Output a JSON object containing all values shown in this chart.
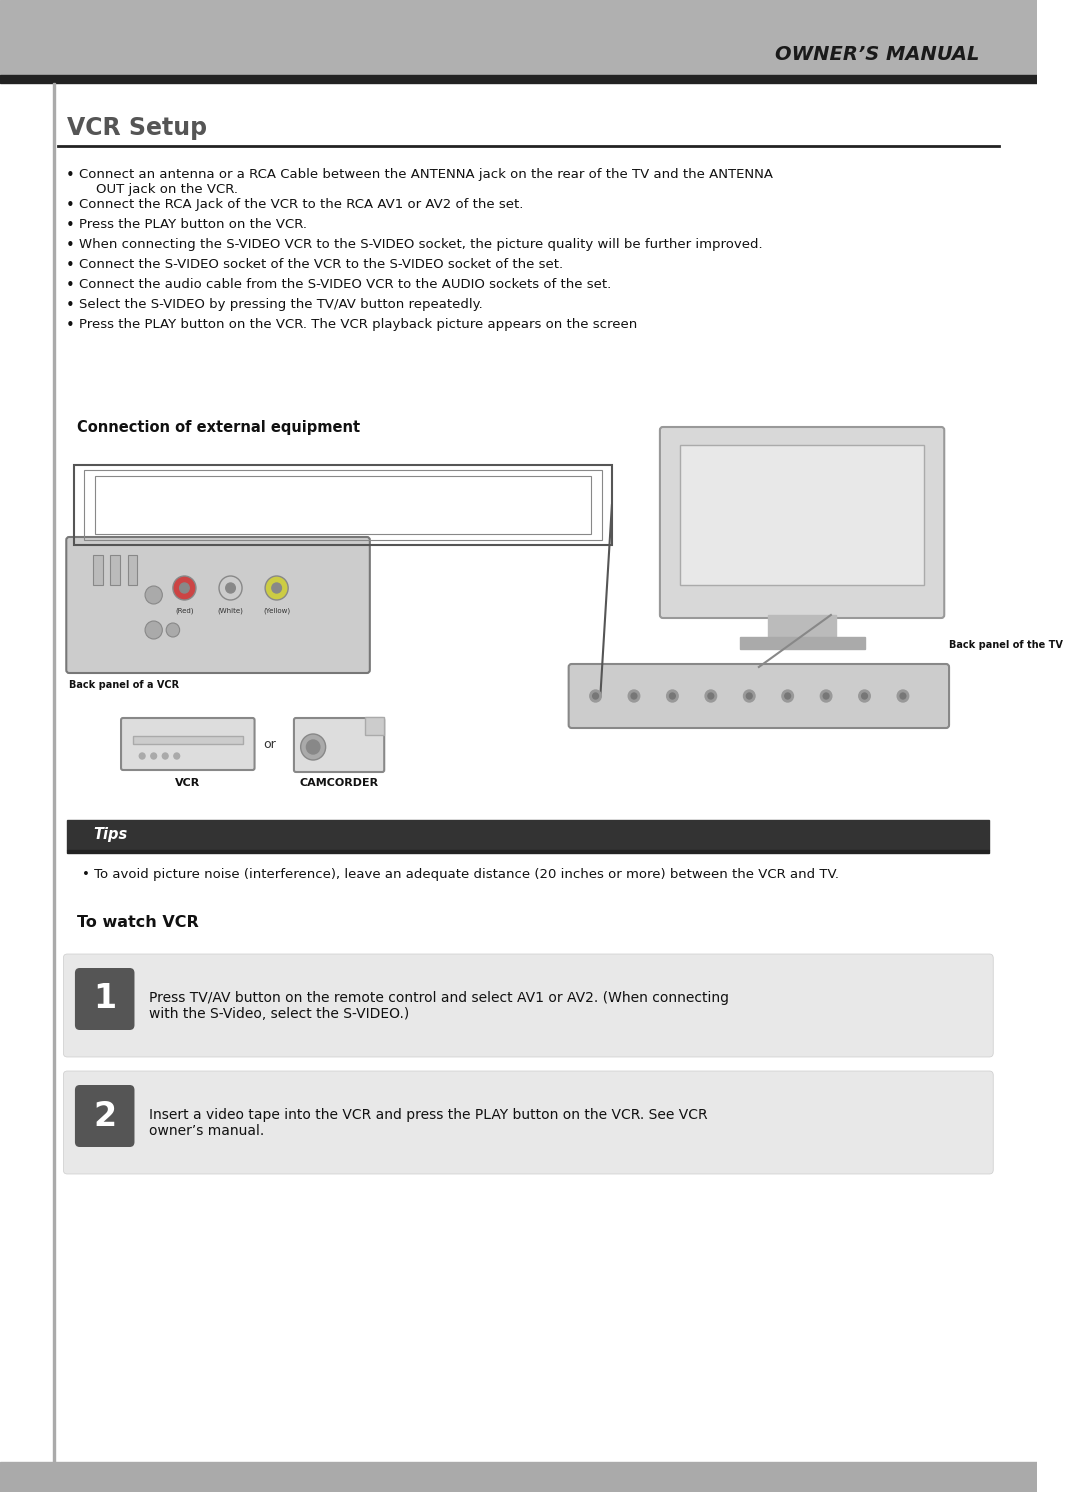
{
  "page_bg": "#ffffff",
  "header_bg": "#b0b0b0",
  "header_text": "OWNER’S MANUAL",
  "header_text_color": "#1a1a1a",
  "title": "VCR Setup",
  "title_color": "#555555",
  "bullet_points": [
    "Connect an antenna or a RCA Cable between the ANTENNA jack on the rear of the TV and the ANTENNA\n    OUT jack on the VCR.",
    "Connect the RCA Jack of the VCR to the RCA AV1 or AV2 of the set.",
    "Press the PLAY button on the VCR.",
    "When connecting the S-VIDEO VCR to the S-VIDEO socket, the picture quality will be further improved.",
    "Connect the S-VIDEO socket of the VCR to the S-VIDEO socket of the set.",
    "Connect the audio cable from the S-VIDEO VCR to the AUDIO sockets of the set.",
    "Select the S-VIDEO by pressing the TV/AV button repeatedly.",
    "Press the PLAY button on the VCR. The VCR playback picture appears on the screen"
  ],
  "connection_title": "Connection of external equipment",
  "tips_bg": "#333333",
  "tips_text_color": "#ffffff",
  "tips_label": "Tips",
  "tips_content": "To avoid picture noise (interference), leave an adequate distance (20 inches or more) between the VCR and TV.",
  "watch_vcr_title": "To watch VCR",
  "step1_num": "1",
  "step1_text": "Press TV/AV button on the remote control and select AV1 or AV2. (When connecting\nwith the S-Video, select the S-VIDEO.)",
  "step2_num": "2",
  "step2_text": "Insert a video tape into the VCR and press the PLAY button on the VCR. See VCR\nowner’s manual.",
  "step_num_bg": "#555555",
  "step_num_text_color": "#ffffff",
  "step_box_bg": "#e8e8e8",
  "font_size_body": 9.5,
  "font_size_title": 15,
  "font_size_header": 14
}
